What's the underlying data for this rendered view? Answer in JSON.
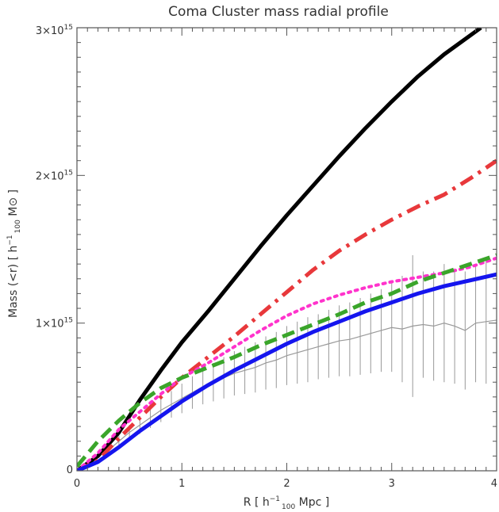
{
  "chart_data": {
    "type": "line",
    "title": "Coma Cluster mass radial profile",
    "xlabel": "R [ h⁻¹₁₀₀ Mpc ]",
    "xlabel_parts": {
      "pre": "R [ h",
      "sup": "−1",
      "sub": "100",
      "post": " Mpc ]"
    },
    "ylabel": "Mass (<r) [ h⁻¹₁₀₀ M⊙ ]",
    "ylabel_parts": {
      "pre": "Mass (<r) [ h",
      "sup": "−1",
      "sub": "100",
      "post": " M⊙ ]"
    },
    "xlim": [
      0,
      4
    ],
    "ylim": [
      0,
      3000000000000000.0
    ],
    "xticks": [
      {
        "v": 0,
        "label": "0"
      },
      {
        "v": 1,
        "label": "1"
      },
      {
        "v": 2,
        "label": "2"
      },
      {
        "v": 3,
        "label": "3"
      },
      {
        "v": 4,
        "label": "4"
      }
    ],
    "yticks": [
      {
        "v": 0,
        "label": "0"
      },
      {
        "v": 1000000000000000.0,
        "label": "1×10",
        "exp": "15"
      },
      {
        "v": 2000000000000000.0,
        "label": "2×10",
        "exp": "15"
      },
      {
        "v": 3000000000000000.0,
        "label": "3×10",
        "exp": "15"
      }
    ],
    "grid": false,
    "series": [
      {
        "color": "#000000",
        "style": "solid",
        "width": 5,
        "x": [
          0,
          0.2,
          0.4,
          0.6,
          0.8,
          1.0,
          1.25,
          1.5,
          1.75,
          2.0,
          2.25,
          2.5,
          2.75,
          3.0,
          3.25,
          3.5,
          3.85
        ],
        "y": [
          0,
          100000000000000.0,
          260000000000000.0,
          480000000000000.0,
          680000000000000.0,
          870000000000000.0,
          1080000000000000.0,
          1300000000000000.0,
          1520000000000000.0,
          1730000000000000.0,
          1930000000000000.0,
          2130000000000000.0,
          2320000000000000.0,
          2500000000000000.0,
          2670000000000000.0,
          2820000000000000.0,
          3000000000000000.0
        ]
      },
      {
        "color": "#e8383b",
        "style": "dashdot",
        "width": 5,
        "x": [
          0,
          0.2,
          0.4,
          0.6,
          0.8,
          1.0,
          1.25,
          1.5,
          1.75,
          2.0,
          2.25,
          2.5,
          2.75,
          3.0,
          3.25,
          3.5,
          3.75,
          4.0
        ],
        "y": [
          0,
          70000000000000.0,
          220000000000000.0,
          360000000000000.0,
          500000000000000.0,
          630000000000000.0,
          770000000000000.0,
          910000000000000.0,
          1060000000000000.0,
          1210000000000000.0,
          1360000000000000.0,
          1490000000000000.0,
          1600000000000000.0,
          1700000000000000.0,
          1790000000000000.0,
          1870000000000000.0,
          1980000000000000.0,
          2100000000000000.0
        ]
      },
      {
        "color": "#ff33cc",
        "style": "dotted",
        "width": 4,
        "x": [
          0,
          0.2,
          0.4,
          0.6,
          0.8,
          1.0,
          1.25,
          1.5,
          1.75,
          2.0,
          2.25,
          2.5,
          2.75,
          3.0,
          3.25,
          3.5,
          3.75,
          4.0
        ],
        "y": [
          0,
          120000000000000.0,
          280000000000000.0,
          400000000000000.0,
          520000000000000.0,
          630000000000000.0,
          730000000000000.0,
          840000000000000.0,
          950000000000000.0,
          1050000000000000.0,
          1130000000000000.0,
          1190000000000000.0,
          1240000000000000.0,
          1280000000000000.0,
          1310000000000000.0,
          1340000000000000.0,
          1380000000000000.0,
          1440000000000000.0
        ]
      },
      {
        "color": "#3aa52a",
        "style": "dashed",
        "width": 5,
        "x": [
          0,
          0.2,
          0.4,
          0.6,
          0.8,
          1.0,
          1.25,
          1.5,
          1.75,
          2.0,
          2.25,
          2.5,
          2.75,
          3.0,
          3.25,
          3.5,
          3.75,
          4.0
        ],
        "y": [
          30000000000000.0,
          200000000000000.0,
          340000000000000.0,
          460000000000000.0,
          560000000000000.0,
          630000000000000.0,
          700000000000000.0,
          770000000000000.0,
          850000000000000.0,
          920000000000000.0,
          990000000000000.0,
          1060000000000000.0,
          1140000000000000.0,
          1200000000000000.0,
          1280000000000000.0,
          1340000000000000.0,
          1400000000000000.0,
          1460000000000000.0
        ]
      },
      {
        "color": "#1515ee",
        "style": "solid",
        "width": 5,
        "x": [
          0,
          0.2,
          0.4,
          0.6,
          0.8,
          1.0,
          1.25,
          1.5,
          1.75,
          2.0,
          2.25,
          2.5,
          2.75,
          3.0,
          3.25,
          3.5,
          3.75,
          4.0
        ],
        "y": [
          0,
          60000000000000.0,
          160000000000000.0,
          270000000000000.0,
          370000000000000.0,
          470000000000000.0,
          580000000000000.0,
          680000000000000.0,
          770000000000000.0,
          860000000000000.0,
          940000000000000.0,
          1010000000000000.0,
          1080000000000000.0,
          1140000000000000.0,
          1200000000000000.0,
          1250000000000000.0,
          1290000000000000.0,
          1330000000000000.0
        ]
      }
    ],
    "observed_profile": {
      "color": "#999999",
      "x": [
        0.3,
        0.4,
        0.5,
        0.6,
        0.7,
        0.8,
        0.9,
        1.0,
        1.1,
        1.2,
        1.3,
        1.4,
        1.5,
        1.6,
        1.7,
        1.8,
        1.9,
        2.0,
        2.1,
        2.2,
        2.3,
        2.4,
        2.5,
        2.6,
        2.7,
        2.8,
        2.9,
        3.0,
        3.1,
        3.2,
        3.3,
        3.4,
        3.5,
        3.6,
        3.7,
        3.8,
        3.9,
        4.0
      ],
      "y": [
        140000000000000.0,
        200000000000000.0,
        260000000000000.0,
        310000000000000.0,
        360000000000000.0,
        410000000000000.0,
        450000000000000.0,
        490000000000000.0,
        530000000000000.0,
        570000000000000.0,
        600000000000000.0,
        630000000000000.0,
        660000000000000.0,
        680000000000000.0,
        700000000000000.0,
        730000000000000.0,
        750000000000000.0,
        780000000000000.0,
        800000000000000.0,
        820000000000000.0,
        840000000000000.0,
        860000000000000.0,
        880000000000000.0,
        890000000000000.0,
        910000000000000.0,
        930000000000000.0,
        950000000000000.0,
        970000000000000.0,
        960000000000000.0,
        980000000000000.0,
        990000000000000.0,
        980000000000000.0,
        1000000000000000.0,
        980000000000000.0,
        950000000000000.0,
        1000000000000000.0,
        1010000000000000.0,
        1020000000000000.0
      ],
      "err": [
        30000000000000.0,
        40000000000000.0,
        50000000000000.0,
        60000000000000.0,
        70000000000000.0,
        80000000000000.0,
        90000000000000.0,
        100000000000000.0,
        110000000000000.0,
        120000000000000.0,
        130000000000000.0,
        140000000000000.0,
        150000000000000.0,
        160000000000000.0,
        170000000000000.0,
        180000000000000.0,
        190000000000000.0,
        200000000000000.0,
        210000000000000.0,
        220000000000000.0,
        220000000000000.0,
        230000000000000.0,
        240000000000000.0,
        250000000000000.0,
        260000000000000.0,
        270000000000000.0,
        280000000000000.0,
        300000000000000.0,
        360000000000000.0,
        480000000000000.0,
        360000000000000.0,
        370000000000000.0,
        400000000000000.0,
        390000000000000.0,
        400000000000000.0,
        400000000000000.0,
        420000000000000.0,
        400000000000000.0
      ]
    }
  }
}
